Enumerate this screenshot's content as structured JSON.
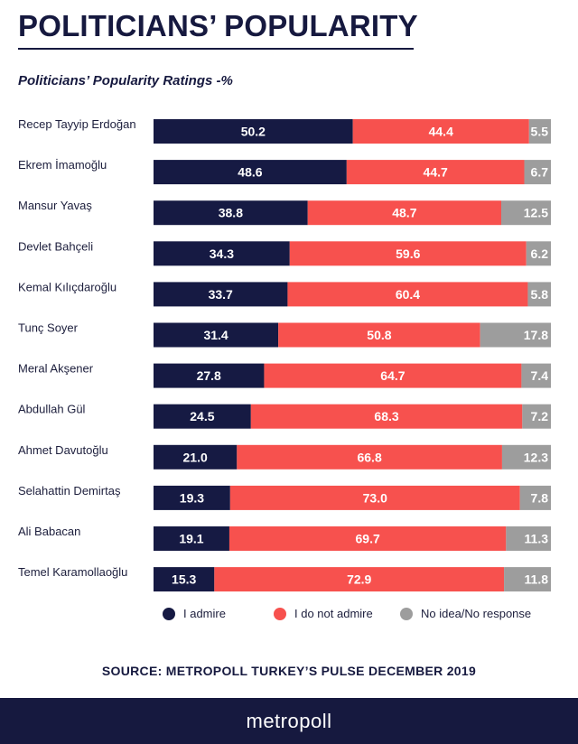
{
  "header": {
    "title": "POLITICIANS’ POPULARITY",
    "subtitle": "Politicians’ Popularity Ratings -%"
  },
  "colors": {
    "admire": "#161a43",
    "not_admire": "#f7514e",
    "no_idea": "#9d9d9d",
    "title": "#16193f"
  },
  "chart_data": {
    "type": "bar",
    "orientation": "horizontal",
    "stacked": true,
    "title": "Politicians’ Popularity Ratings -%",
    "xlim": [
      0,
      100
    ],
    "categories": [
      "Recep Tayyip Erdoğan",
      "Ekrem İmamoğlu",
      "Mansur Yavaş",
      "Devlet Bahçeli",
      "Kemal Kılıçdaroğlu",
      "Tunç Soyer",
      "Meral Akşener",
      "Abdullah Gül",
      "Ahmet Davutoğlu",
      "Selahattin Demirtaş",
      "Ali Babacan",
      "Temel Karamollaoğlu"
    ],
    "series": [
      {
        "name": "I admire",
        "values": [
          "50.2",
          "48.6",
          "38.8",
          "34.3",
          "33.7",
          "31.4",
          "27.8",
          "24.5",
          "21.0",
          "19.3",
          "19.1",
          "15.3"
        ]
      },
      {
        "name": "I do not admire",
        "values": [
          "44.4",
          "44.7",
          "48.7",
          "59.6",
          "60.4",
          "50.8",
          "64.7",
          "68.3",
          "66.8",
          "73.0",
          "69.7",
          "72.9"
        ]
      },
      {
        "name": "No idea/No response",
        "values": [
          "5.5",
          "6.7",
          "12.5",
          "6.2",
          "5.8",
          "17.8",
          "7.4",
          "7.2",
          "12.3",
          "7.8",
          "11.3",
          "11.8"
        ]
      }
    ]
  },
  "legend": {
    "position": "bottom",
    "items": [
      {
        "label": "I admire"
      },
      {
        "label": "I do not admire"
      },
      {
        "label": "No idea/No response"
      }
    ]
  },
  "source": "SOURCE: METROPOLL TURKEY’S PULSE DECEMBER 2019",
  "footer": {
    "brand": "metropoll"
  }
}
